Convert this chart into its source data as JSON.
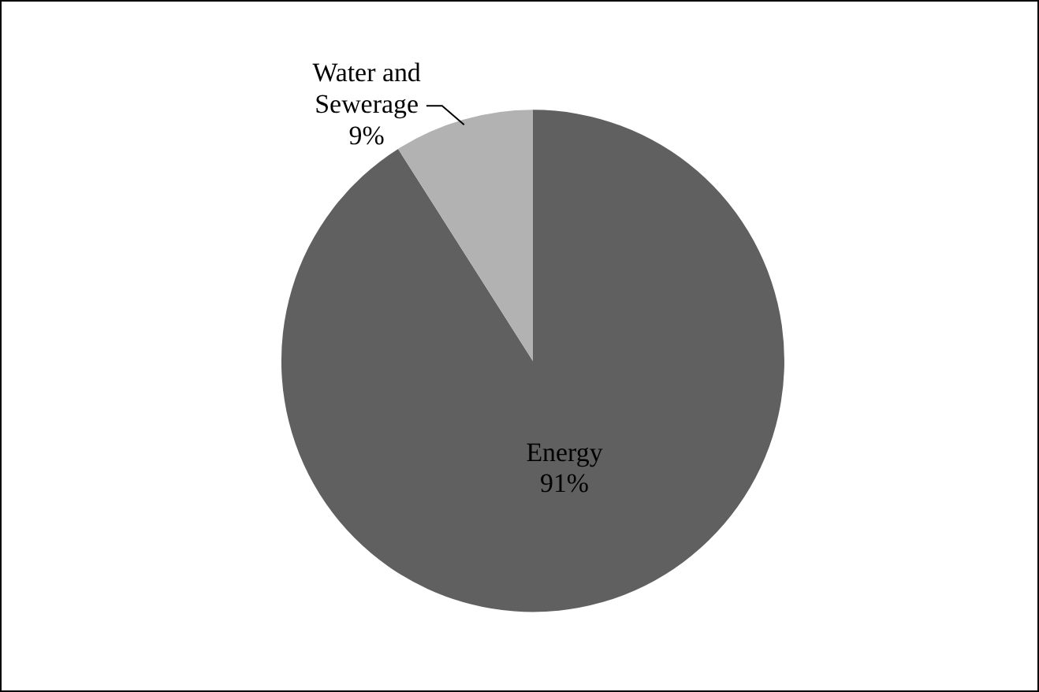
{
  "chart_data": {
    "type": "pie",
    "categories": [
      "Energy",
      "Water and Sewerage"
    ],
    "values": [
      91,
      9
    ],
    "value_labels": [
      "91%",
      "9%"
    ],
    "colors": [
      "#606060",
      "#b2b2b2"
    ]
  }
}
